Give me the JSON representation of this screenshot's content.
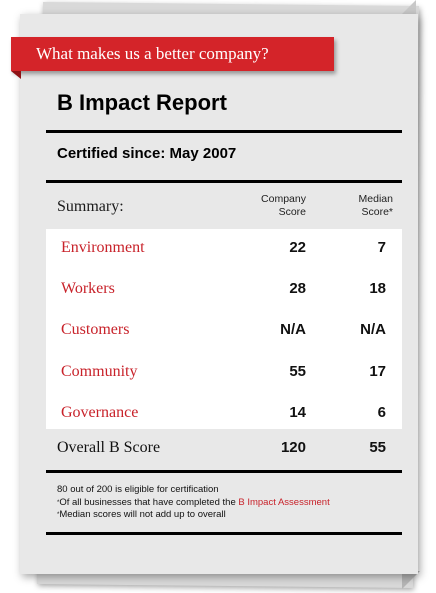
{
  "banner": {
    "text": "What makes us a better company?"
  },
  "report": {
    "title": "B Impact Report",
    "certified_label": "Certified since:",
    "certified_value": "May 2007"
  },
  "table": {
    "summary_label": "Summary:",
    "company_header_line1": "Company",
    "company_header_line2": "Score",
    "median_header_line1": "Median",
    "median_header_line2": "Score*",
    "rows": [
      {
        "category": "Environment",
        "company": "22",
        "median": "7"
      },
      {
        "category": "Workers",
        "company": "28",
        "median": "18"
      },
      {
        "category": "Customers",
        "company": "N/A",
        "median": "N/A"
      },
      {
        "category": "Community",
        "company": "55",
        "median": "17"
      },
      {
        "category": "Governance",
        "company": "14",
        "median": "6"
      }
    ],
    "overall": {
      "category": "Overall B Score",
      "company": "120",
      "median": "55"
    }
  },
  "footnotes": {
    "line1": "80 out of 200 is eligible for certification",
    "line2_prefix": "Of all businesses that have completed the ",
    "line2_link": "B Impact Assessment",
    "line3": "Median scores will not add up to overall",
    "marker": "*"
  },
  "colors": {
    "accent": "#d42429",
    "card": "#e8e8e8",
    "link": "#c8222a"
  }
}
